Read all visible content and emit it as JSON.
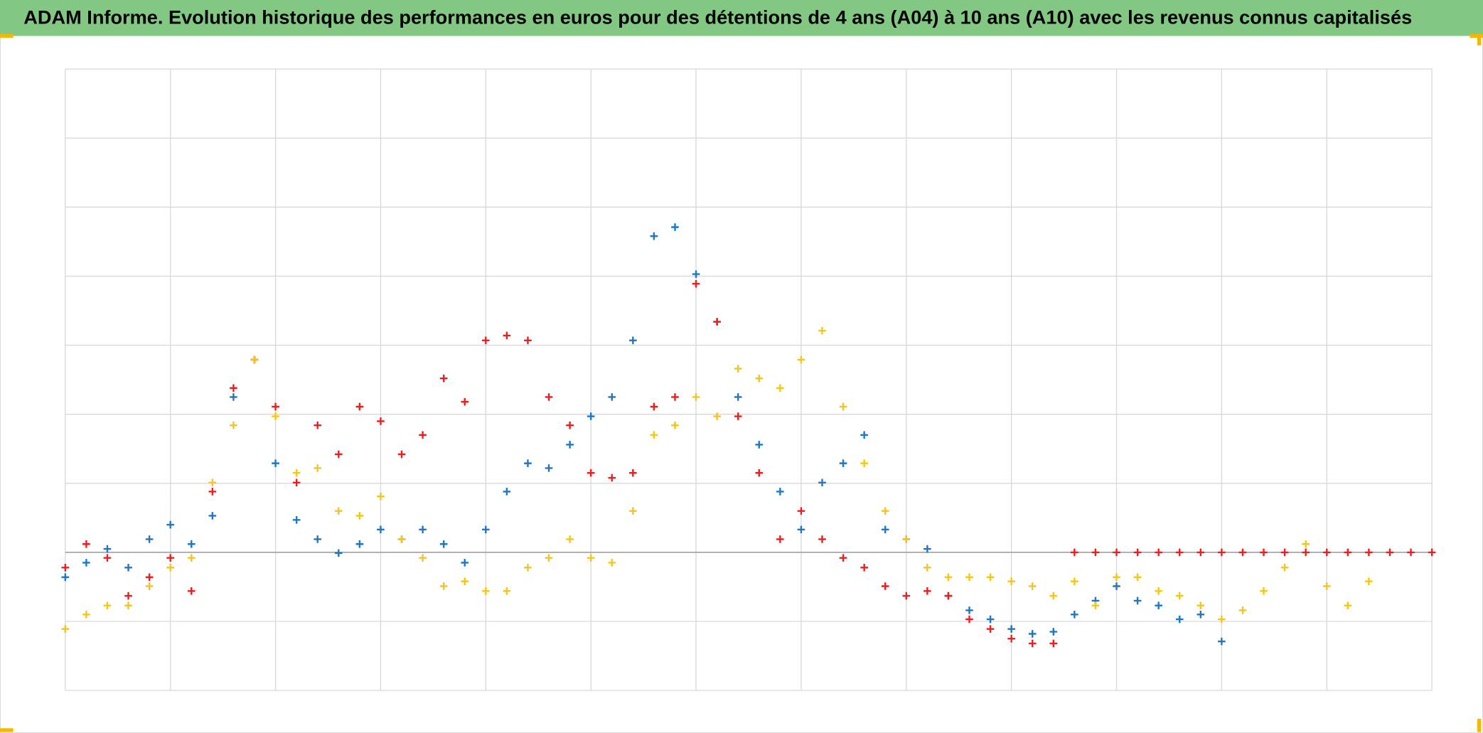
{
  "chart_data": {
    "type": "scatter",
    "title": "ADAM Informe. Evolution historique des performances en euros pour des détentions de 4 ans (A04) à 10 ans (A10) avec les revenus connus capitalisés",
    "x": [
      0,
      0.2,
      0.4,
      0.6,
      0.8,
      1,
      1.2,
      1.4,
      1.6,
      1.8,
      2,
      2.2,
      2.4,
      2.6,
      2.8,
      3,
      3.2,
      3.4,
      3.6,
      3.8,
      4,
      4.2,
      4.4,
      4.6,
      4.8,
      5,
      5.2,
      5.4,
      5.6,
      5.8,
      6,
      6.2,
      6.4,
      6.6,
      6.8,
      7,
      7.2,
      7.4,
      7.6,
      7.8,
      8,
      8.2,
      8.4,
      8.6,
      8.8,
      9,
      9.2,
      9.4,
      9.6,
      9.8,
      10,
      10.2,
      10.4,
      10.6,
      10.8,
      11,
      11.2,
      11.4,
      11.6,
      11.8,
      12,
      12.2,
      12.4,
      12.6,
      12.8,
      13
    ],
    "series": [
      {
        "color": "#1f77c4",
        "values": [
          -0.36,
          -0.15,
          0.05,
          -0.22,
          0.19,
          0.4,
          0.12,
          0.53,
          2.25,
          2.79,
          1.29,
          0.47,
          0.19,
          -0.01,
          0.12,
          0.33,
          0.19,
          0.33,
          0.12,
          -0.15,
          0.33,
          0.88,
          1.29,
          1.22,
          1.56,
          1.97,
          2.25,
          3.07,
          4.58,
          4.71,
          4.03,
          3.34,
          2.25,
          1.56,
          0.88,
          0.33,
          1.01,
          1.29,
          1.7,
          0.33,
          0.19,
          0.05,
          -0.63,
          -0.84,
          -0.97,
          -1.11,
          -1.18,
          -1.15,
          -0.9,
          -0.7,
          -0.49,
          -0.7,
          -0.77,
          -0.97,
          -0.9,
          -1.29,
          null,
          null,
          null,
          null,
          null,
          null,
          null,
          null,
          null,
          null
        ]
      },
      {
        "color": "#ee1c1c",
        "values": [
          -0.22,
          0.12,
          -0.08,
          -0.63,
          -0.36,
          -0.08,
          -0.56,
          0.88,
          2.38,
          2.79,
          2.11,
          1.01,
          1.84,
          1.42,
          2.11,
          1.9,
          1.42,
          1.7,
          2.52,
          2.18,
          3.07,
          3.14,
          3.07,
          2.25,
          1.84,
          1.15,
          1.08,
          1.15,
          2.11,
          2.25,
          3.89,
          3.34,
          1.97,
          1.15,
          0.19,
          0.6,
          0.19,
          -0.08,
          -0.22,
          -0.49,
          -0.63,
          -0.56,
          -0.63,
          -0.97,
          -1.11,
          -1.25,
          -1.32,
          -1.32,
          0,
          0,
          0,
          0,
          0,
          0,
          0,
          0,
          0,
          0,
          0,
          0,
          0,
          0,
          0,
          0,
          0,
          0
        ]
      },
      {
        "color": "#f5c518",
        "values": [
          -1.11,
          -0.9,
          -0.77,
          -0.77,
          -0.49,
          -0.22,
          -0.08,
          1.01,
          1.84,
          2.79,
          1.97,
          1.15,
          1.22,
          0.6,
          0.53,
          0.81,
          0.19,
          -0.08,
          -0.49,
          -0.42,
          -0.56,
          -0.56,
          -0.22,
          -0.08,
          0.19,
          -0.08,
          -0.15,
          0.6,
          1.7,
          1.84,
          2.25,
          1.97,
          2.66,
          2.52,
          2.38,
          2.79,
          3.21,
          2.11,
          1.29,
          0.6,
          0.19,
          -0.22,
          -0.36,
          -0.36,
          -0.36,
          -0.42,
          -0.49,
          -0.63,
          -0.42,
          -0.77,
          -0.36,
          -0.36,
          -0.56,
          -0.63,
          -0.77,
          -0.97,
          -0.84,
          -0.56,
          -0.22,
          0.12,
          -0.49,
          -0.77,
          -0.42,
          null,
          null,
          null
        ]
      }
    ],
    "xlim": [
      0,
      13
    ],
    "xticks": [
      0,
      1,
      2,
      3,
      4,
      5,
      6,
      7,
      8,
      9,
      10,
      11,
      12,
      13
    ],
    "ylim": [
      -2,
      7
    ],
    "yticks": [
      -2,
      -1,
      0,
      1,
      2,
      3,
      4,
      5,
      6,
      7
    ],
    "grid": true,
    "zero_line_color": "#a6a6a6",
    "grid_color": "#d9d9d9",
    "title_background": "#82c882"
  }
}
